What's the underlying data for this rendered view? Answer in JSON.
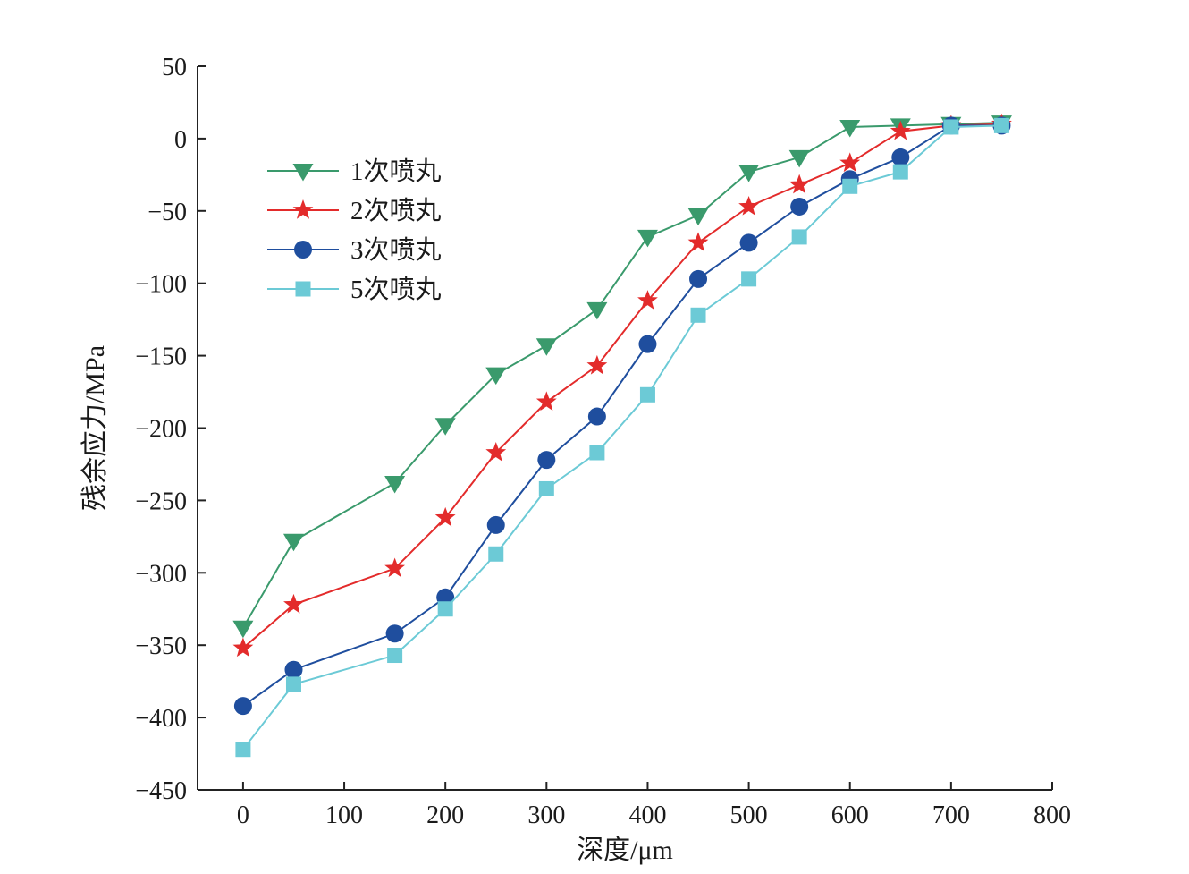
{
  "chart_data": {
    "type": "line",
    "xlabel": "深度/μm",
    "ylabel": "残余应力/MPa",
    "xlim": [
      -45,
      800
    ],
    "ylim": [
      -450,
      50
    ],
    "xticks": [
      0,
      100,
      200,
      300,
      400,
      500,
      600,
      700,
      800
    ],
    "yticks": [
      50,
      0,
      -50,
      -100,
      -150,
      -200,
      -250,
      -300,
      -350,
      -400,
      -450
    ],
    "xtick_labels": [
      "0",
      "100",
      "200",
      "300",
      "400",
      "500",
      "600",
      "700",
      "800"
    ],
    "ytick_labels": [
      "50",
      "0",
      "−50",
      "−100",
      "−150",
      "−200",
      "−250",
      "−300",
      "−350",
      "−400",
      "−450"
    ],
    "legend_position": "upper-left",
    "grid": false,
    "x": [
      0,
      50,
      150,
      200,
      250,
      300,
      350,
      400,
      450,
      500,
      550,
      600,
      650,
      700,
      750
    ],
    "series": [
      {
        "name": "1次喷丸",
        "color": "#3a9a6c",
        "marker": "triangle-down",
        "values": [
          -338,
          -278,
          -238,
          -198,
          -163,
          -143,
          -118,
          -68,
          -53,
          -23,
          -13,
          8,
          9,
          10,
          11
        ]
      },
      {
        "name": "2次喷丸",
        "color": "#e32b2b",
        "marker": "star",
        "values": [
          -352,
          -322,
          -297,
          -262,
          -217,
          -182,
          -157,
          -112,
          -72,
          -47,
          -32,
          -17,
          5,
          9,
          10
        ]
      },
      {
        "name": "3次喷丸",
        "color": "#1f4e9e",
        "marker": "circle",
        "values": [
          -392,
          -367,
          -342,
          -317,
          -267,
          -222,
          -192,
          -142,
          -97,
          -72,
          -47,
          -28,
          -13,
          9,
          9
        ]
      },
      {
        "name": "5次喷丸",
        "color": "#6ccad6",
        "marker": "square",
        "values": [
          -422,
          -377,
          -357,
          -325,
          -287,
          -242,
          -217,
          -177,
          -122,
          -97,
          -68,
          -33,
          -23,
          8,
          9
        ]
      }
    ]
  }
}
